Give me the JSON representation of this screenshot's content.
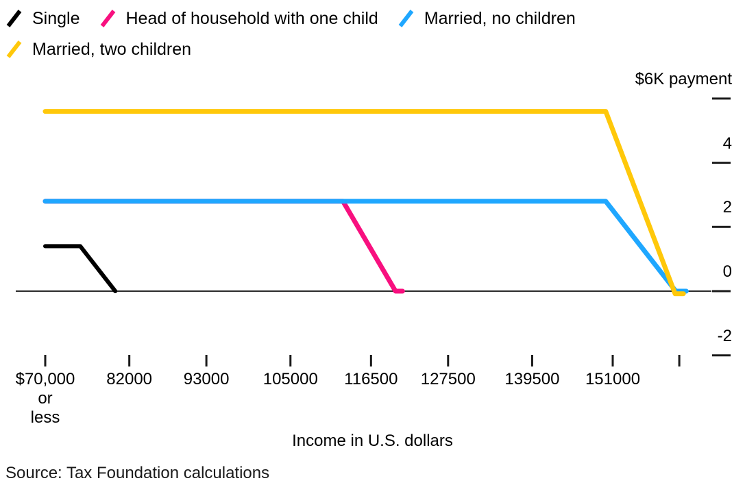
{
  "legend": {
    "items": [
      {
        "id": "single",
        "label": "Single",
        "color": "#000000",
        "row": 1
      },
      {
        "id": "head-of-household-one-child",
        "label": "Head of household with one child",
        "color": "#F8107F",
        "row": 1
      },
      {
        "id": "married-no-children",
        "label": "Married, no children",
        "color": "#1FA7FF",
        "row": 1
      },
      {
        "id": "married-two-children",
        "label": "Married, two children",
        "color": "#FFC80A",
        "row": 2
      }
    ]
  },
  "chart_data": {
    "type": "line",
    "title": "",
    "xlabel": "Income in U.S. dollars",
    "ylabel": "$6K payment",
    "y_unit": "US dollars (axis ticks in thousands)",
    "x_range": [
      70000,
      162500
    ],
    "y_range": [
      -2000,
      6000
    ],
    "grid": false,
    "legend_position": "top-left",
    "y_ticks": [
      {
        "value": 6000,
        "label": "$6K payment"
      },
      {
        "value": 4000,
        "label": "4"
      },
      {
        "value": 2000,
        "label": "2"
      },
      {
        "value": 0,
        "label": "0"
      },
      {
        "value": -2000,
        "label": "-2"
      }
    ],
    "x_ticks": [
      {
        "value": 70000,
        "label_lines": [
          "$70,000",
          "or",
          "less"
        ]
      },
      {
        "value": 82000,
        "label_lines": [
          "82000"
        ]
      },
      {
        "value": 93000,
        "label_lines": [
          "93000"
        ]
      },
      {
        "value": 105000,
        "label_lines": [
          "105000"
        ]
      },
      {
        "value": 116500,
        "label_lines": [
          "116500"
        ]
      },
      {
        "value": 127500,
        "label_lines": [
          "127500"
        ]
      },
      {
        "value": 139500,
        "label_lines": [
          "139500"
        ]
      },
      {
        "value": 151000,
        "label_lines": [
          "151000"
        ]
      },
      {
        "value": 160500,
        "label_lines": []
      }
    ],
    "series": [
      {
        "id": "single",
        "name": "Single",
        "color": "#000000",
        "stroke_width": 6,
        "points": [
          [
            70000,
            1400
          ],
          [
            75000,
            1400
          ],
          [
            80000,
            0
          ]
        ]
      },
      {
        "id": "head-of-household-one-child",
        "name": "Head of household with one child",
        "color": "#F8107F",
        "stroke_width": 7,
        "points": [
          [
            70000,
            2800
          ],
          [
            112500,
            2800
          ],
          [
            120000,
            0
          ],
          [
            121000,
            0
          ]
        ]
      },
      {
        "id": "married-no-children",
        "name": "Married, no children",
        "color": "#1FA7FF",
        "stroke_width": 7,
        "points": [
          [
            70000,
            2800
          ],
          [
            150000,
            2800
          ],
          [
            160000,
            0
          ],
          [
            161500,
            0
          ]
        ]
      },
      {
        "id": "married-two-children",
        "name": "Married, two children",
        "color": "#FFC80A",
        "stroke_width": 7,
        "points": [
          [
            70000,
            5600
          ],
          [
            150000,
            5600
          ],
          [
            159900,
            -80
          ],
          [
            161100,
            -80
          ]
        ]
      }
    ]
  },
  "source": "Source: Tax Foundation calculations"
}
